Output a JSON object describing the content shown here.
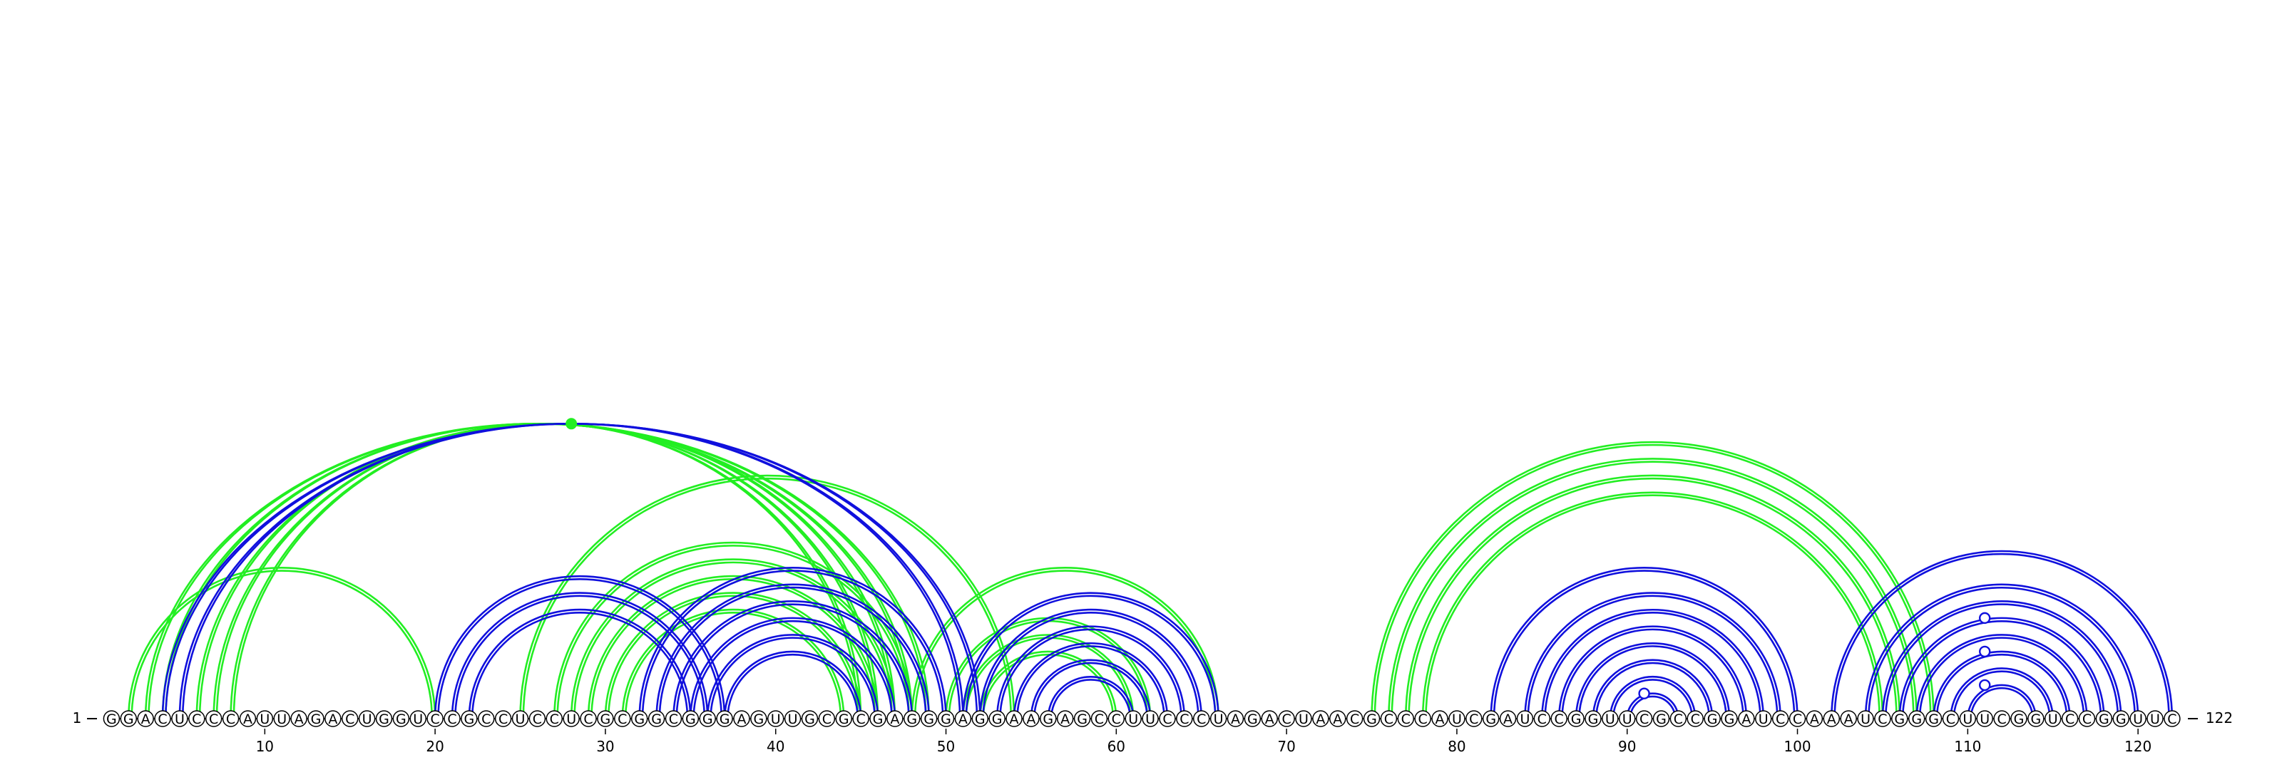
{
  "sequence": {
    "start_label": "1",
    "end_label": "122",
    "length": 122,
    "bases": "GGACUCCCAUUAGACUGGUCCGCCUCCUCGCGGCGGGAGUUGCGCGAGGGAGGAAGAGCCUUCCCUAGACUAACGCCCAUCGAUCCGGUUCGCCGGAUCCAAAUCGGGCUUCGGUCCGGUUC"
  },
  "ticks": [
    10,
    20,
    30,
    40,
    50,
    60,
    70,
    80,
    90,
    100,
    110,
    120
  ],
  "colors": {
    "blue": "#1010dd",
    "green": "#22ee22",
    "text": "#000000",
    "node_fill": "#ffffff"
  },
  "arcs_green": [
    [
      2,
      20
    ],
    [
      3,
      49
    ],
    [
      4,
      48
    ],
    [
      6,
      47
    ],
    [
      7,
      46
    ],
    [
      8,
      45
    ],
    [
      25,
      54
    ],
    [
      27,
      48
    ],
    [
      28,
      47
    ],
    [
      29,
      46
    ],
    [
      30,
      45
    ],
    [
      31,
      44
    ],
    [
      48,
      66
    ],
    [
      50,
      62
    ],
    [
      51,
      61
    ],
    [
      52,
      60
    ],
    [
      75,
      108
    ],
    [
      76,
      107
    ],
    [
      77,
      106
    ],
    [
      78,
      105
    ]
  ],
  "arcs_blue": [
    [
      4,
      52
    ],
    [
      5,
      51
    ],
    [
      20,
      37
    ],
    [
      21,
      36
    ],
    [
      22,
      35
    ],
    [
      32,
      50
    ],
    [
      33,
      49
    ],
    [
      34,
      48
    ],
    [
      35,
      47
    ],
    [
      36,
      46
    ],
    [
      37,
      45
    ],
    [
      51,
      66
    ],
    [
      52,
      65
    ],
    [
      53,
      64
    ],
    [
      54,
      63
    ],
    [
      55,
      62
    ],
    [
      56,
      61
    ],
    [
      82,
      100
    ],
    [
      84,
      99
    ],
    [
      85,
      98
    ],
    [
      86,
      97
    ],
    [
      87,
      96
    ],
    [
      88,
      95
    ],
    [
      89,
      94
    ],
    [
      90,
      93
    ],
    [
      102,
      122
    ],
    [
      104,
      120
    ],
    [
      105,
      119
    ],
    [
      106,
      118
    ],
    [
      107,
      117
    ],
    [
      108,
      116
    ],
    [
      109,
      115
    ],
    [
      110,
      114
    ]
  ],
  "open_markers": [
    91,
    111,
    111,
    111
  ],
  "filled_markers": [
    28
  ]
}
